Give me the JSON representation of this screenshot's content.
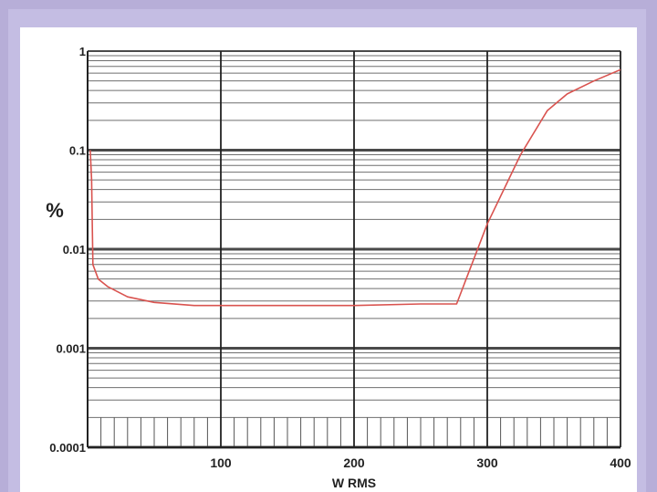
{
  "chart_data": {
    "type": "line",
    "title": "",
    "xlabel": "W RMS",
    "ylabel": "%",
    "y_scale": "log",
    "xlim": [
      0,
      400
    ],
    "ylim": [
      0.0001,
      1
    ],
    "grid": true,
    "x_ticks": [
      "100",
      "200",
      "300",
      "400"
    ],
    "y_ticks": [
      "1",
      "0.1",
      "0.01",
      "0.001",
      "0.0001"
    ],
    "series": [
      {
        "color": "#d9534f",
        "x": [
          2,
          3,
          4,
          8,
          15,
          30,
          50,
          80,
          150,
          200,
          250,
          277,
          300,
          325,
          345,
          360,
          380,
          400
        ],
        "y": [
          0.1,
          0.05,
          0.007,
          0.005,
          0.0042,
          0.0033,
          0.0029,
          0.0027,
          0.0027,
          0.0027,
          0.0028,
          0.0028,
          0.018,
          0.09,
          0.25,
          0.37,
          0.5,
          0.65
        ]
      }
    ]
  }
}
